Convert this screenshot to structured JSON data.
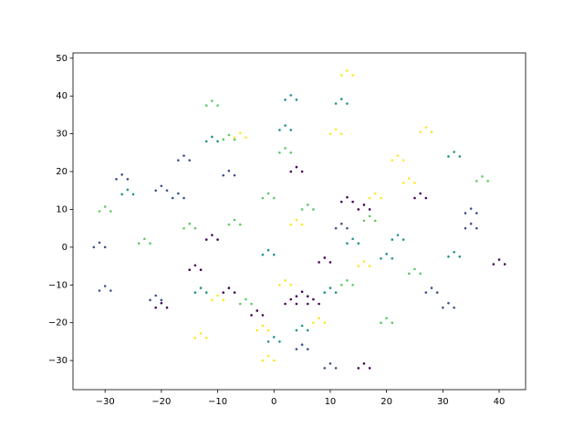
{
  "chart_data": {
    "type": "scatter",
    "xlim": [
      -35.7,
      44.7
    ],
    "ylim": [
      -37.7,
      51.4
    ],
    "xticks": [
      {
        "value": -30,
        "label": "−30"
      },
      {
        "value": -20,
        "label": "−20"
      },
      {
        "value": -10,
        "label": "−10"
      },
      0,
      10,
      20,
      30,
      40
    ],
    "yticks": [
      {
        "value": -30,
        "label": "−30"
      },
      {
        "value": -20,
        "label": "−20"
      },
      {
        "value": -10,
        "label": "−10"
      },
      0,
      10,
      20,
      30,
      40,
      50
    ],
    "series": [
      {
        "color": "#440154",
        "x": [
          39,
          41,
          40,
          3,
          5,
          4,
          -12,
          -10,
          -11,
          -15,
          -13,
          -14,
          6,
          8,
          7,
          4,
          6,
          5,
          8,
          10,
          9,
          15,
          17,
          16,
          12,
          14,
          13,
          -4,
          -2,
          -3,
          15,
          17,
          16,
          2,
          4,
          3,
          -9,
          -7,
          -8,
          25,
          27,
          26,
          -21,
          -19,
          -20
        ],
        "y": [
          -4.5,
          -4.5,
          -3.3,
          20,
          20,
          21.2,
          2,
          2,
          3.2,
          -6,
          -6,
          -4.8,
          -15,
          -15,
          -13.8,
          -13,
          -13,
          -11.8,
          -4,
          -4,
          -2.8,
          -32,
          -32,
          -30.8,
          12,
          12,
          13.2,
          -18,
          -18,
          -16.8,
          10,
          10,
          11.2,
          -15,
          -15,
          -13.8,
          -12,
          -12,
          -10.8,
          13,
          13,
          14.2,
          -16,
          -16,
          -14.8
        ]
      },
      {
        "color": "#3b528b",
        "x": [
          -32,
          -30,
          -31,
          -31,
          -29,
          -30,
          -17,
          -15,
          -16,
          -9,
          -7,
          -8,
          -28,
          -26,
          -27,
          -21,
          -19,
          -20,
          -18,
          -16,
          -17,
          34,
          36,
          35,
          34,
          36,
          35,
          30,
          32,
          31,
          9,
          11,
          10,
          -22,
          -20,
          -21,
          11,
          13,
          12,
          4,
          6,
          5,
          27,
          29,
          28
        ],
        "y": [
          0,
          0,
          1.2,
          -11.5,
          -11.5,
          -10.3,
          23,
          23,
          24.2,
          19,
          19,
          20.2,
          18,
          18,
          19.2,
          15,
          15,
          16.2,
          13,
          13,
          14.2,
          9,
          9,
          10.2,
          5,
          5,
          6.2,
          -16,
          -16,
          -14.8,
          -32,
          -32,
          -30.8,
          -14,
          -14,
          -12.8,
          5,
          5,
          6.2,
          -27,
          -27,
          -25.8,
          -12,
          -12,
          -10.8
        ]
      },
      {
        "color": "#21918c",
        "x": [
          2,
          4,
          3,
          1,
          3,
          2,
          11,
          13,
          12,
          -12,
          -10,
          -11,
          31,
          33,
          32,
          31,
          33,
          32,
          19,
          21,
          20,
          -14,
          -12,
          -13,
          -2,
          0,
          -1,
          13,
          15,
          14,
          -1,
          1,
          0,
          4,
          6,
          5,
          9,
          11,
          10,
          21,
          23,
          22,
          -27,
          -25,
          -26
        ],
        "y": [
          39,
          39,
          40.2,
          31,
          31,
          32.2,
          38,
          38,
          39.2,
          28,
          28,
          29.2,
          24,
          24,
          25.2,
          -2.5,
          -2.5,
          -1.3,
          -3,
          -3,
          -1.8,
          -12,
          -12,
          -10.8,
          -2,
          -2,
          -0.8,
          1,
          1,
          2.2,
          -25,
          -25,
          -23.8,
          -22,
          -22,
          -20.8,
          -12,
          -12,
          -10.8,
          2,
          2,
          3.2,
          14,
          14,
          15.2
        ]
      },
      {
        "color": "#5ec962",
        "x": [
          -31,
          -29,
          -30,
          -12,
          -10,
          -11,
          36,
          38,
          37,
          1,
          3,
          2,
          -8,
          -6,
          -7,
          -9,
          -7,
          -8,
          -2,
          0,
          -1,
          16,
          18,
          17,
          5,
          7,
          6,
          -24,
          -22,
          -23,
          24,
          26,
          25,
          12,
          14,
          13,
          -6,
          -4,
          -5,
          19,
          21,
          20,
          -16,
          -14,
          -15
        ],
        "y": [
          9.5,
          9.5,
          10.7,
          37.5,
          37.5,
          38.7,
          17.5,
          17.5,
          18.7,
          25,
          25,
          26.2,
          6,
          6,
          7.2,
          28.5,
          28.5,
          29.7,
          13,
          13,
          14.2,
          7,
          7,
          8.2,
          10,
          10,
          11.2,
          1,
          1,
          2.2,
          -7,
          -7,
          -5.8,
          -10,
          -10,
          -8.8,
          -15,
          -15,
          -13.8,
          -20,
          -20,
          -18.8,
          5,
          5,
          6.2
        ]
      },
      {
        "color": "#fde725",
        "x": [
          12,
          14,
          13,
          -7,
          -5,
          -6,
          26,
          28,
          27,
          21,
          23,
          22,
          3,
          5,
          4,
          -14,
          -12,
          -13,
          -2,
          0,
          -1,
          15,
          17,
          16,
          -11,
          -9,
          -10,
          10,
          12,
          11,
          17,
          19,
          18,
          1,
          3,
          2,
          7,
          9,
          8,
          -3,
          -1,
          -2,
          23,
          25,
          24
        ],
        "y": [
          45.5,
          45.5,
          46.7,
          29,
          29,
          30.2,
          30.5,
          30.5,
          31.7,
          23,
          23,
          24.2,
          6,
          6,
          7.2,
          -24,
          -24,
          -22.8,
          -30,
          -30,
          -28.8,
          -5,
          -5,
          -3.8,
          -14,
          -14,
          -12.8,
          30,
          30,
          31.2,
          13,
          13,
          14.2,
          -10,
          -10,
          -8.8,
          -20,
          -20,
          -18.8,
          -22,
          -22,
          -20.8,
          17,
          17,
          18.2
        ]
      }
    ]
  }
}
